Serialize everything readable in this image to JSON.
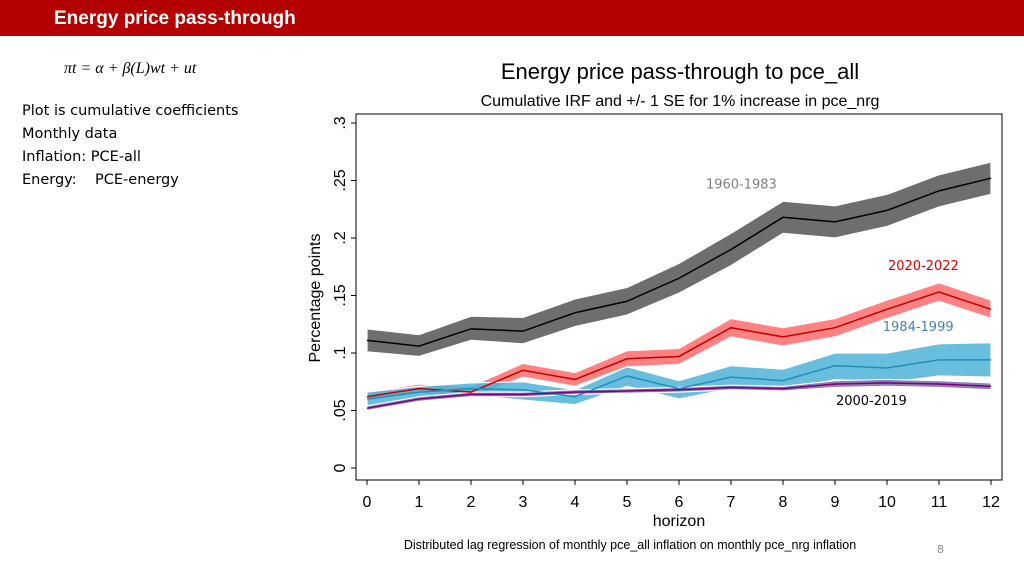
{
  "header": {
    "title": "Energy price pass-through"
  },
  "equation": {
    "text": "πt = α + β(L)wt + ut"
  },
  "notes": [
    "Plot is cumulative coefficients",
    "Monthly data",
    "Inflation: PCE-all",
    "Energy:    PCE-energy"
  ],
  "colors": {
    "header": "#b30000",
    "grey": "#555555",
    "red": "#ff6b6b",
    "blue": "#4fb3d8",
    "purple": "#7a67a8"
  },
  "page_number": "8",
  "chart_data": {
    "type": "line",
    "title": "Energy price pass-through to pce_all",
    "subtitle": "Cumulative IRF and +/- 1 SE for 1% increase in pce_nrg",
    "xlabel": "horizon",
    "ylabel": "Percentage points",
    "caption": "Distributed lag regression of monthly pce_all inflation on monthly pce_nrg inflation",
    "x": [
      0,
      1,
      2,
      3,
      4,
      5,
      6,
      7,
      8,
      9,
      10,
      11,
      12
    ],
    "xlim": [
      0,
      12
    ],
    "ylim": [
      0,
      0.3
    ],
    "yticks": [
      0,
      0.05,
      0.1,
      0.15,
      0.2,
      0.25,
      0.3
    ],
    "ytick_labels": [
      "0",
      ".05",
      ".1",
      ".15",
      ".2",
      ".25",
      ".3"
    ],
    "xtick_labels": [
      "0",
      "1",
      "2",
      "3",
      "4",
      "5",
      "6",
      "7",
      "8",
      "9",
      "10",
      "11",
      "12"
    ],
    "series": [
      {
        "name": "1960-1983",
        "band_color": "#555555",
        "line_color": "#000000",
        "label_color": "#7f7f7f",
        "values": [
          0.111,
          0.106,
          0.121,
          0.119,
          0.135,
          0.145,
          0.165,
          0.19,
          0.218,
          0.214,
          0.224,
          0.241,
          0.252
        ],
        "lower": [
          0.101,
          0.097,
          0.111,
          0.108,
          0.123,
          0.133,
          0.152,
          0.176,
          0.204,
          0.2,
          0.21,
          0.227,
          0.238
        ],
        "upper": [
          0.121,
          0.116,
          0.132,
          0.131,
          0.147,
          0.157,
          0.178,
          0.204,
          0.232,
          0.228,
          0.238,
          0.255,
          0.266
        ]
      },
      {
        "name": "2020-2022",
        "band_color": "#ff6b6b",
        "line_color": "#c00000",
        "label_color": "#e00000",
        "values": [
          0.062,
          0.069,
          0.066,
          0.085,
          0.077,
          0.095,
          0.097,
          0.122,
          0.114,
          0.122,
          0.138,
          0.153,
          0.138
        ],
        "lower": [
          0.058,
          0.065,
          0.061,
          0.079,
          0.071,
          0.088,
          0.09,
          0.114,
          0.106,
          0.114,
          0.13,
          0.145,
          0.13
        ],
        "upper": [
          0.066,
          0.073,
          0.071,
          0.091,
          0.083,
          0.102,
          0.104,
          0.13,
          0.122,
          0.13,
          0.146,
          0.161,
          0.146
        ]
      },
      {
        "name": "1984-1999",
        "band_color": "#4fb3d8",
        "line_color": "#1f8fb8",
        "label_color": "#4a7fb5",
        "values": [
          0.06,
          0.066,
          0.069,
          0.068,
          0.062,
          0.08,
          0.069,
          0.079,
          0.076,
          0.089,
          0.087,
          0.094,
          0.094
        ],
        "lower": [
          0.054,
          0.061,
          0.063,
          0.059,
          0.055,
          0.071,
          0.06,
          0.069,
          0.066,
          0.077,
          0.074,
          0.08,
          0.079
        ],
        "upper": [
          0.066,
          0.071,
          0.074,
          0.075,
          0.068,
          0.088,
          0.076,
          0.089,
          0.086,
          0.1,
          0.1,
          0.108,
          0.109
        ]
      },
      {
        "name": "2000-2019",
        "band_color": "#7a67a8",
        "line_color": "#800080",
        "label_color": "#000000",
        "values": [
          0.052,
          0.06,
          0.064,
          0.064,
          0.066,
          0.067,
          0.068,
          0.07,
          0.069,
          0.073,
          0.074,
          0.073,
          0.071
        ],
        "lower": [
          0.05,
          0.058,
          0.062,
          0.062,
          0.064,
          0.065,
          0.066,
          0.068,
          0.067,
          0.07,
          0.071,
          0.07,
          0.068
        ],
        "upper": [
          0.054,
          0.062,
          0.066,
          0.066,
          0.068,
          0.069,
          0.07,
          0.072,
          0.071,
          0.076,
          0.077,
          0.076,
          0.074
        ]
      }
    ]
  }
}
